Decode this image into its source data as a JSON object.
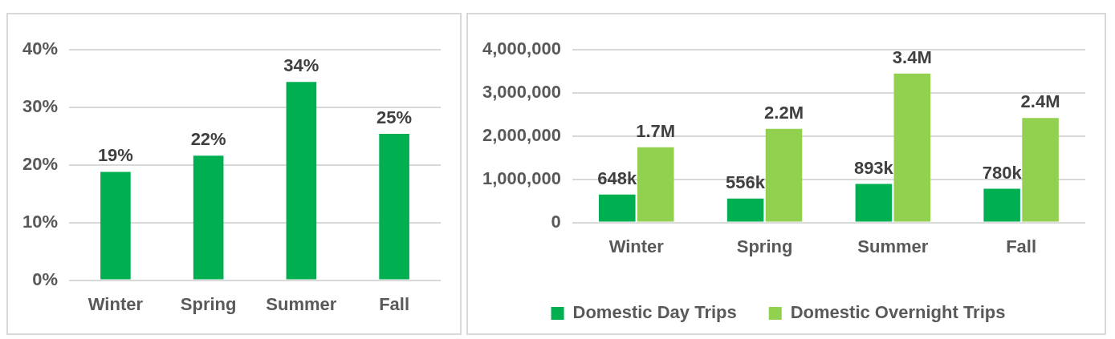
{
  "chart_data": [
    {
      "type": "bar",
      "categories": [
        "Winter",
        "Spring",
        "Summer",
        "Fall"
      ],
      "series": [
        {
          "color": "#00b050",
          "values": [
            18.8,
            21.6,
            34.4,
            25.4
          ],
          "value_labels": [
            "19%",
            "22%",
            "34%",
            "25%"
          ]
        }
      ],
      "ylim": [
        0,
        40
      ],
      "yticks": [
        {
          "value": 0,
          "label": "0%"
        },
        {
          "value": 10,
          "label": "10%"
        },
        {
          "value": 20,
          "label": "20%"
        },
        {
          "value": 30,
          "label": "30%"
        },
        {
          "value": 40,
          "label": "40%"
        }
      ],
      "grid": "y",
      "legend": false
    },
    {
      "type": "bar",
      "categories": [
        "Winter",
        "Spring",
        "Summer",
        "Fall"
      ],
      "series": [
        {
          "name": "Domestic Day Trips",
          "color": "#00b050",
          "values": [
            648000,
            556000,
            893000,
            780000
          ],
          "value_labels": [
            "648k",
            "556k",
            "893k",
            "780k"
          ]
        },
        {
          "name": "Domestic Overnight Trips",
          "color": "#92d050",
          "values": [
            1740000,
            2170000,
            3450000,
            2420000
          ],
          "value_labels": [
            "1.7M",
            "2.2M",
            "3.4M",
            "2.4M"
          ]
        }
      ],
      "ylim": [
        0,
        4000000
      ],
      "yticks": [
        {
          "value": 0,
          "label": "0"
        },
        {
          "value": 1000000,
          "label": "1,000,000"
        },
        {
          "value": 2000000,
          "label": "2,000,000"
        },
        {
          "value": 3000000,
          "label": "3,000,000"
        },
        {
          "value": 4000000,
          "label": "4,000,000"
        }
      ],
      "grid": "y",
      "legend": "bottom"
    }
  ]
}
